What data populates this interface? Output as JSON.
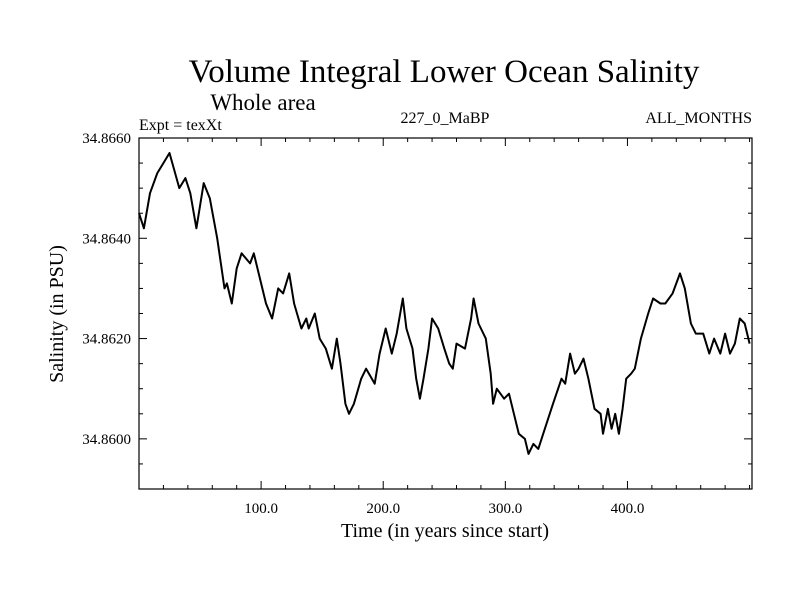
{
  "chart_data": {
    "type": "line",
    "title": "Volume Integral Lower Ocean Salinity",
    "subtitle": "Whole area",
    "header_left": "Expt = texXt",
    "header_center": "227_0_MaBP",
    "header_right": "ALL_MONTHS",
    "xlabel": "Time (in years since start)",
    "ylabel": "Salinity (in PSU)",
    "xlim": [
      0,
      502
    ],
    "ylim": [
      34.859,
      34.866
    ],
    "x_ticks": [
      100,
      200,
      300,
      400
    ],
    "x_tick_labels": [
      "100.0",
      "200.0",
      "300.0",
      "400.0"
    ],
    "x_minor_step": 20,
    "y_ticks": [
      34.86,
      34.862,
      34.864,
      34.866
    ],
    "y_tick_labels": [
      "34.8600",
      "34.8620",
      "34.8640",
      "34.8660"
    ],
    "y_minor_step": 0.0005,
    "grid": false,
    "legend": "none",
    "line_color": "#000000",
    "series": [
      {
        "name": "Salinity",
        "x": [
          0,
          4,
          9,
          15,
          20,
          25,
          33,
          38,
          42,
          47,
          53,
          58,
          64,
          70,
          72,
          76,
          80,
          84,
          91,
          94,
          99,
          104,
          109,
          114,
          118,
          123,
          127,
          133,
          137,
          139,
          144,
          148,
          153,
          158,
          162,
          165,
          169,
          172,
          176,
          182,
          186,
          193,
          197,
          202,
          207,
          211,
          216,
          219,
          224,
          227,
          230,
          233,
          237,
          240,
          245,
          250,
          254,
          257,
          260,
          267,
          272,
          274,
          278,
          284,
          288,
          290,
          293,
          299,
          303,
          307,
          311,
          316,
          319,
          323,
          327,
          331,
          335,
          339,
          346,
          349,
          353,
          357,
          360,
          364,
          368,
          373,
          378,
          380,
          384,
          387,
          390,
          393,
          396,
          399,
          403,
          406,
          411,
          417,
          421,
          427,
          431,
          437,
          443,
          447,
          452,
          456,
          462,
          467,
          471,
          476,
          480,
          484,
          488,
          492,
          496,
          500
        ],
        "y": [
          34.8645,
          34.8642,
          34.8649,
          34.8653,
          34.8655,
          34.8657,
          34.865,
          34.8652,
          34.8649,
          34.8642,
          34.8651,
          34.8648,
          34.864,
          34.863,
          34.8631,
          34.8627,
          34.8634,
          34.8637,
          34.8635,
          34.8637,
          34.8632,
          34.8627,
          34.8624,
          34.863,
          34.8629,
          34.8633,
          34.8627,
          34.8622,
          34.8624,
          34.8622,
          34.8625,
          34.862,
          34.8618,
          34.8614,
          34.862,
          34.8615,
          34.8607,
          34.8605,
          34.8607,
          34.8612,
          34.8614,
          34.8611,
          34.8617,
          34.8622,
          34.8617,
          34.8621,
          34.8628,
          34.8622,
          34.8618,
          34.8612,
          34.8608,
          34.8612,
          34.8618,
          34.8624,
          34.8622,
          34.8618,
          34.8615,
          34.8614,
          34.8619,
          34.8618,
          34.8624,
          34.8628,
          34.8623,
          34.862,
          34.8613,
          34.8607,
          34.861,
          34.8608,
          34.8609,
          34.8605,
          34.8601,
          34.86,
          34.8597,
          34.8599,
          34.8598,
          34.8601,
          34.8604,
          34.8607,
          34.8612,
          34.8611,
          34.8617,
          34.8613,
          34.8614,
          34.8616,
          34.8612,
          34.8606,
          34.8605,
          34.8601,
          34.8606,
          34.8602,
          34.8605,
          34.8601,
          34.8606,
          34.8612,
          34.8613,
          34.8614,
          34.862,
          34.8625,
          34.8628,
          34.8627,
          34.8627,
          34.8629,
          34.8633,
          34.863,
          34.8623,
          34.8621,
          34.8621,
          34.8617,
          34.862,
          34.8617,
          34.8621,
          34.8617,
          34.8619,
          34.8624,
          34.8623,
          34.8619
        ]
      }
    ]
  }
}
